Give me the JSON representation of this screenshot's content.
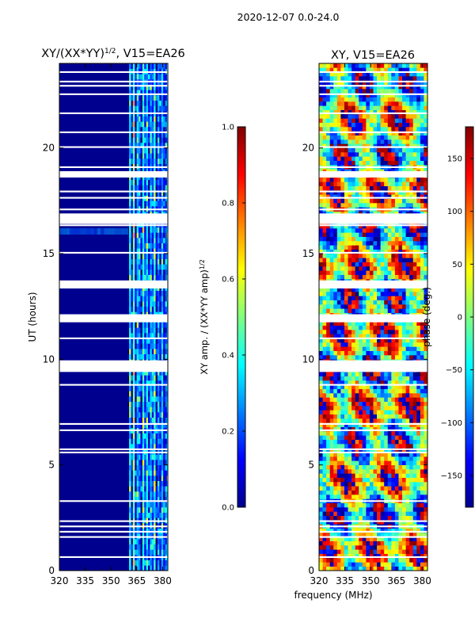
{
  "figure": {
    "suptitle": "2020-12-07 0.0-24.0",
    "xlabel": "frequency (MHz)"
  },
  "chart_data": [
    {
      "type": "heatmap",
      "title": "XY/(XX*YY)^{1/2}, V15=EA26",
      "title_main": "XY/(XX*YY)",
      "title_sup": "1/2",
      "title_tail": ", V15=EA26",
      "xlabel": "frequency (MHz)",
      "ylabel": "UT (hours)",
      "xlim": [
        320,
        383
      ],
      "ylim": [
        0,
        24
      ],
      "xticks": [
        320,
        335,
        350,
        365,
        380
      ],
      "yticks": [
        0,
        5,
        10,
        15,
        20
      ],
      "colorbar": {
        "label": "XY amp. / (XX*YY amp)^{1/2}",
        "label_main": "XY amp. / (XX*YY amp)",
        "label_sup": "1/2",
        "range": [
          0.0,
          1.0
        ],
        "ticks": [
          "0.0",
          "0.2",
          "0.4",
          "0.6",
          "0.8",
          "1.0"
        ],
        "tick_values": [
          0.0,
          0.2,
          0.4,
          0.6,
          0.8,
          1.0
        ],
        "colormap": "jet"
      },
      "note": "Values near 0 (dark blue) below ~360 MHz; elevated values (0.2–0.5) in vertical stripes between ~360 and ~383 MHz; white gaps are flagged times."
    },
    {
      "type": "heatmap",
      "title": "XY, V15=EA26",
      "xlabel": "frequency (MHz)",
      "ylabel": "",
      "xlim": [
        320,
        383
      ],
      "ylim": [
        0,
        24
      ],
      "xticks": [
        320,
        335,
        350,
        365,
        380
      ],
      "yticks": [
        0,
        5,
        10,
        15,
        20
      ],
      "colorbar": {
        "label": "phase (deg.)",
        "range": [
          -180,
          180
        ],
        "ticks": [
          "−150",
          "−100",
          "−50",
          "0",
          "50",
          "100",
          "150"
        ],
        "tick_values": [
          -150,
          -100,
          -50,
          0,
          50,
          100,
          150
        ],
        "colormap": "jet"
      },
      "note": "Phase varies widely across full range −180 to 180 deg; white gaps are flagged times."
    }
  ],
  "flagged_hours": [
    0.6,
    1.55,
    1.8,
    2.05,
    2.3,
    3.25,
    5.55,
    5.7,
    6.6,
    6.9,
    8.75,
    9.5,
    9.65,
    9.8,
    10.95,
    11.8,
    12.05,
    13.45,
    13.65,
    15.0,
    16.3,
    16.55,
    16.8,
    17.05,
    17.6,
    17.9,
    18.65,
    18.8,
    19.05,
    20.0,
    20.7,
    21.6,
    22.5,
    22.9,
    23.1,
    23.55
  ]
}
